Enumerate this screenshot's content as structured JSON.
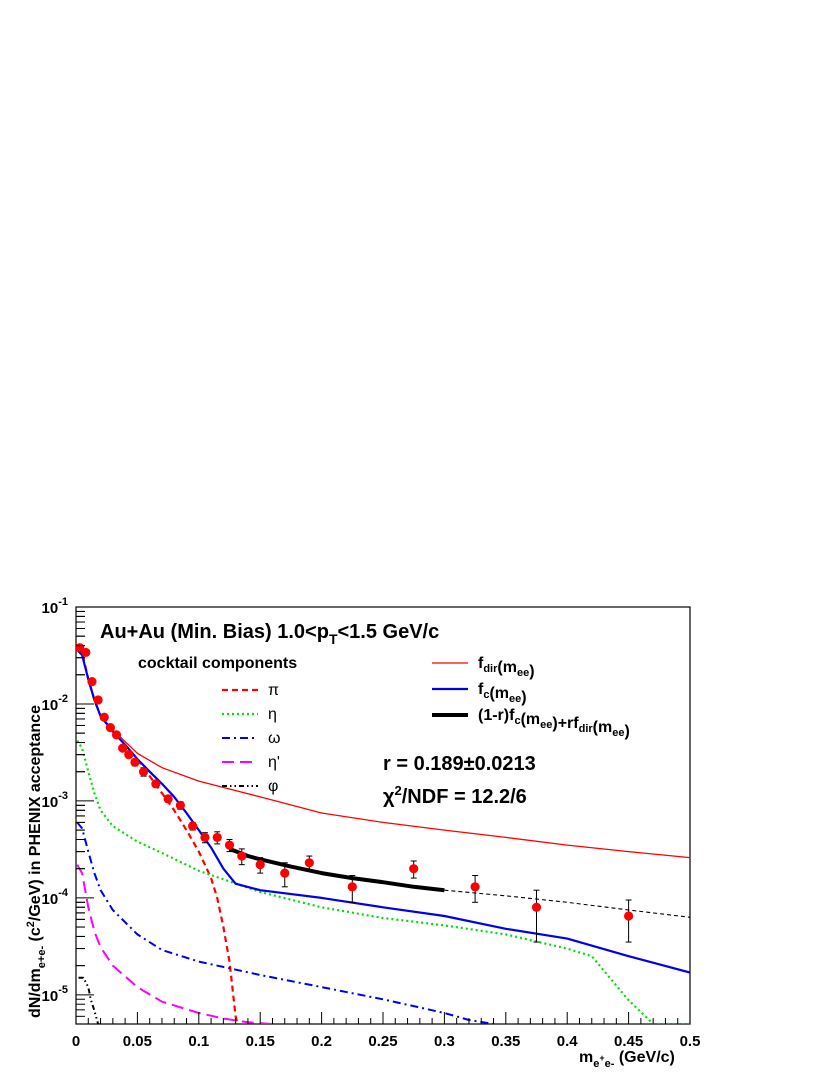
{
  "chart_data": {
    "type": "line",
    "title": "Au+Au (Min. Bias) 1.0<p_T<1.5 GeV/c",
    "xlabel": "m_{e+e-} (GeV/c)",
    "ylabel": "dN/dm_{e+e-} (c^2/GeV) in PHENIX acceptance",
    "xlim": [
      0,
      0.5
    ],
    "ylim": [
      5e-06,
      0.1
    ],
    "y_scale": "log",
    "x_ticks": [
      "0",
      "0.05",
      "0.1",
      "0.15",
      "0.2",
      "0.25",
      "0.3",
      "0.35",
      "0.4",
      "0.45",
      "0.5"
    ],
    "y_ticks": [
      "10^-5",
      "10^-4",
      "10^-3",
      "10^-2",
      "10^-1"
    ],
    "legend_cocktail_header": "cocktail components",
    "annotations": {
      "r_fit": "r = 0.189±0.0213",
      "chi2": "χ^2/NDF = 12.2/6"
    },
    "series": [
      {
        "name": "π",
        "style": "dashed",
        "color": "#ff0000",
        "x": [
          0.001,
          0.005,
          0.01,
          0.015,
          0.02,
          0.03,
          0.04,
          0.05,
          0.06,
          0.07,
          0.08,
          0.09,
          0.1,
          0.105,
          0.11,
          0.115,
          0.12,
          0.125,
          0.128,
          0.13,
          0.131,
          0.132
        ],
        "y": [
          0.038,
          0.034,
          0.018,
          0.011,
          0.0075,
          0.0052,
          0.0038,
          0.0027,
          0.0018,
          0.0012,
          0.0008,
          0.0005,
          0.0003,
          0.00022,
          0.00016,
          0.0001,
          5e-05,
          2.2e-05,
          1e-05,
          6e-06,
          5.3e-06,
          5e-06
        ]
      },
      {
        "name": "η",
        "style": "dotted",
        "color": "#00dd00",
        "x": [
          0.001,
          0.005,
          0.01,
          0.015,
          0.02,
          0.03,
          0.05,
          0.07,
          0.1,
          0.15,
          0.2,
          0.25,
          0.3,
          0.35,
          0.4,
          0.42,
          0.45,
          0.47,
          0.5
        ],
        "y": [
          0.0042,
          0.0035,
          0.002,
          0.0012,
          0.0008,
          0.00055,
          0.00038,
          0.00029,
          0.00019,
          0.000115,
          8e-05,
          6.2e-05,
          5.2e-05,
          4.2e-05,
          3e-05,
          2.5e-05,
          8.8e-06,
          5e-06,
          5e-06
        ]
      },
      {
        "name": "ω",
        "style": "dashdot",
        "color": "#0000ee",
        "x": [
          0.001,
          0.005,
          0.01,
          0.015,
          0.02,
          0.03,
          0.05,
          0.07,
          0.1,
          0.15,
          0.2,
          0.25,
          0.3,
          0.32,
          0.34
        ],
        "y": [
          0.0006,
          0.00052,
          0.0003,
          0.00018,
          0.00012,
          7.5e-05,
          4.2e-05,
          2.9e-05,
          2.2e-05,
          1.6e-05,
          1.2e-05,
          9e-06,
          6.5e-06,
          5.5e-06,
          5e-06
        ]
      },
      {
        "name": "η'",
        "style": "longdash",
        "color": "#ff00ff",
        "x": [
          0.001,
          0.005,
          0.01,
          0.015,
          0.02,
          0.03,
          0.05,
          0.07,
          0.1,
          0.12,
          0.14,
          0.16
        ],
        "y": [
          0.00022,
          0.00018,
          8e-05,
          4.5e-05,
          3.1e-05,
          2e-05,
          1.2e-05,
          8.5e-06,
          6.5e-06,
          5.7e-06,
          5.2e-06,
          5e-06
        ]
      },
      {
        "name": "φ",
        "style": "dashdotdot",
        "color": "#000000",
        "x": [
          0.002,
          0.006,
          0.01,
          0.012,
          0.014,
          0.016,
          0.018
        ],
        "y": [
          1.5e-05,
          1.5e-05,
          1.2e-05,
          9e-06,
          7.5e-06,
          6.2e-06,
          5e-06
        ]
      },
      {
        "name": "f_dir(m_ee)",
        "style": "solid-thin",
        "color": "#ff0000",
        "x": [
          0.001,
          0.005,
          0.01,
          0.015,
          0.02,
          0.03,
          0.05,
          0.07,
          0.1,
          0.15,
          0.2,
          0.25,
          0.3,
          0.35,
          0.4,
          0.45,
          0.5
        ],
        "y": [
          0.036,
          0.032,
          0.018,
          0.011,
          0.0076,
          0.0054,
          0.0031,
          0.0022,
          0.0016,
          0.0011,
          0.00075,
          0.0006,
          0.0005,
          0.00042,
          0.00035,
          0.0003,
          0.00026
        ]
      },
      {
        "name": "f_c(m_ee)",
        "style": "solid",
        "color": "#0000ee",
        "x": [
          0.001,
          0.005,
          0.01,
          0.015,
          0.02,
          0.03,
          0.04,
          0.05,
          0.06,
          0.07,
          0.08,
          0.09,
          0.1,
          0.11,
          0.12,
          0.13,
          0.15,
          0.2,
          0.25,
          0.3,
          0.35,
          0.4,
          0.45,
          0.5
        ],
        "y": [
          0.036,
          0.032,
          0.018,
          0.011,
          0.0075,
          0.0052,
          0.0038,
          0.0027,
          0.002,
          0.0015,
          0.0011,
          0.00075,
          0.0005,
          0.00033,
          0.0002,
          0.00014,
          0.00012,
          0.0001,
          8e-05,
          6.5e-05,
          4.8e-05,
          3.8e-05,
          2.5e-05,
          1.7e-05
        ]
      },
      {
        "name": "(1-r)f_c(m_ee)+rf_dir(m_ee)",
        "style": "solid-thick",
        "color": "#000000",
        "x": [
          0.125,
          0.14,
          0.15,
          0.175,
          0.2,
          0.225,
          0.25,
          0.275,
          0.3
        ],
        "y": [
          0.00032,
          0.00027,
          0.00025,
          0.00021,
          0.00018,
          0.00016,
          0.000145,
          0.00013,
          0.00012
        ]
      },
      {
        "name": "",
        "style": "dashed-thin",
        "color": "#000000",
        "x": [
          0.3,
          0.35,
          0.4,
          0.45,
          0.5
        ],
        "y": [
          0.00012,
          0.000105,
          9e-05,
          7.5e-05,
          6.3e-05
        ]
      }
    ],
    "data_points": {
      "x": [
        0.003,
        0.008,
        0.013,
        0.018,
        0.023,
        0.028,
        0.033,
        0.038,
        0.043,
        0.048,
        0.055,
        0.065,
        0.075,
        0.085,
        0.095,
        0.105,
        0.115,
        0.125,
        0.135,
        0.15,
        0.17,
        0.19,
        0.225,
        0.275,
        0.325,
        0.375,
        0.45
      ],
      "y": [
        0.038,
        0.034,
        0.017,
        0.011,
        0.0073,
        0.0057,
        0.0048,
        0.0035,
        0.003,
        0.0025,
        0.002,
        0.0015,
        0.00105,
        0.0009,
        0.00055,
        0.00042,
        0.00042,
        0.00035,
        0.00027,
        0.00022,
        0.00018,
        0.00023,
        0.00013,
        0.0002,
        0.00013,
        8e-05,
        6.5e-05
      ],
      "y_lo": [
        0.036,
        0.032,
        0.016,
        0.0105,
        0.007,
        0.0054,
        0.0045,
        0.0033,
        0.0028,
        0.0023,
        0.0018,
        0.0014,
        0.00097,
        0.00082,
        0.0005,
        0.00037,
        0.00036,
        0.0003,
        0.00022,
        0.00018,
        0.00013,
        0.00019,
        9e-05,
        0.00016,
        9e-05,
        3.5e-05,
        3.5e-05
      ],
      "y_hi": [
        0.04,
        0.036,
        0.018,
        0.0115,
        0.0076,
        0.006,
        0.0051,
        0.0037,
        0.0032,
        0.0027,
        0.0022,
        0.0016,
        0.00113,
        0.00098,
        0.0006,
        0.00047,
        0.00048,
        0.0004,
        0.00032,
        0.00026,
        0.00023,
        0.00027,
        0.00017,
        0.00024,
        0.00017,
        0.00012,
        9.5e-05
      ],
      "color": "#ff0000"
    }
  }
}
